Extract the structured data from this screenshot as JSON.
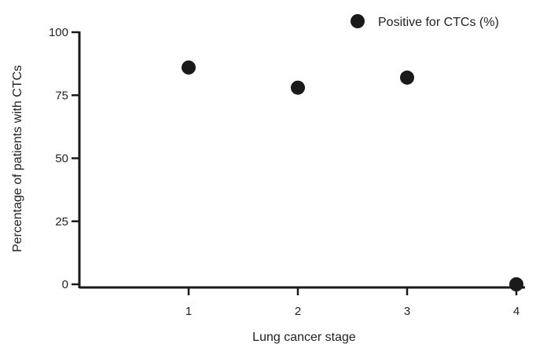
{
  "chart_data": {
    "type": "scatter",
    "title": "",
    "xlabel": "Lung cancer stage",
    "ylabel": "Percentage of patients with CTCs",
    "xlim": [
      0,
      4
    ],
    "ylim": [
      0,
      100
    ],
    "x_ticks": [
      "1",
      "2",
      "3",
      "4"
    ],
    "y_ticks": [
      "0",
      "25",
      "50",
      "75",
      "100"
    ],
    "grid": false,
    "legend_position": "top-right",
    "series": [
      {
        "name": "Positive for CTCs (%)",
        "color": "#1a1a1a",
        "marker": "circle",
        "points": [
          {
            "x": 1,
            "y": 86
          },
          {
            "x": 2,
            "y": 78
          },
          {
            "x": 3,
            "y": 82
          },
          {
            "x": 4,
            "y": 0
          }
        ]
      }
    ]
  }
}
